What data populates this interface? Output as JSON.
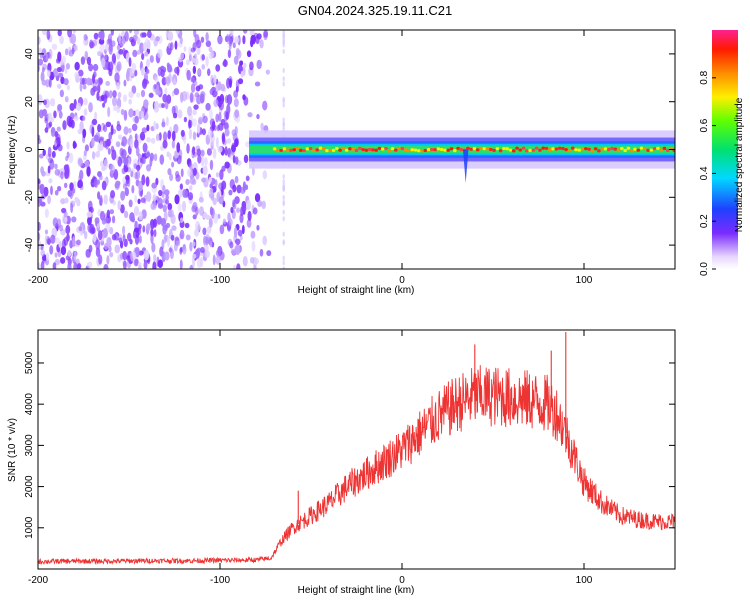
{
  "title": "GN04.2024.325.19.11.C21",
  "chart_data": [
    {
      "type": "heatmap",
      "xlabel": "Height of straight line (km)",
      "ylabel": "Frequency (Hz)",
      "xlim": [
        -200,
        150
      ],
      "ylim": [
        -50,
        50
      ],
      "xticks": [
        "-200",
        "-100",
        "0",
        "100"
      ],
      "yticks": [
        "40",
        "20",
        "0",
        "-20",
        "-40"
      ],
      "colorbar": {
        "label": "Normalized spectral amplitude",
        "range": [
          0.0,
          1.0
        ],
        "ticks": [
          "0.0",
          "0.2",
          "0.4",
          "0.6",
          "0.8"
        ]
      },
      "noise_region_x": [
        -200,
        -72
      ],
      "signal_band_hz": 0,
      "signal_start_x": -84,
      "dip_x": 35
    },
    {
      "type": "line",
      "xlabel": "Height of straight line (km)",
      "ylabel": "SNR (10 * v/v)",
      "xlim": [
        -200,
        150
      ],
      "ylim": [
        0,
        5800
      ],
      "xticks": [
        "-200",
        "-100",
        "0",
        "100"
      ],
      "yticks": [
        "1000",
        "2000",
        "3000",
        "4000",
        "5000"
      ],
      "color": "#ee3333",
      "series": [
        {
          "x": [
            -200,
            -180,
            -160,
            -140,
            -120,
            -100,
            -80,
            -72,
            -66,
            -60,
            -50,
            -40,
            -30,
            -20,
            -10,
            0,
            10,
            20,
            30,
            40,
            50,
            60,
            70,
            80,
            85,
            90,
            95,
            100,
            110,
            120,
            130,
            140,
            150
          ],
          "values": [
            180,
            190,
            190,
            200,
            200,
            210,
            220,
            260,
            700,
            1000,
            1300,
            1600,
            2000,
            2300,
            2600,
            2900,
            3300,
            3700,
            4000,
            4200,
            4200,
            4150,
            4100,
            4000,
            3800,
            3300,
            2700,
            2100,
            1600,
            1300,
            1200,
            1150,
            1150
          ]
        }
      ],
      "spikes": [
        {
          "x": -57,
          "y": 1900
        },
        {
          "x": 40,
          "y": 5450
        },
        {
          "x": 82,
          "y": 5300
        },
        {
          "x": 90,
          "y": 5750
        }
      ]
    }
  ]
}
